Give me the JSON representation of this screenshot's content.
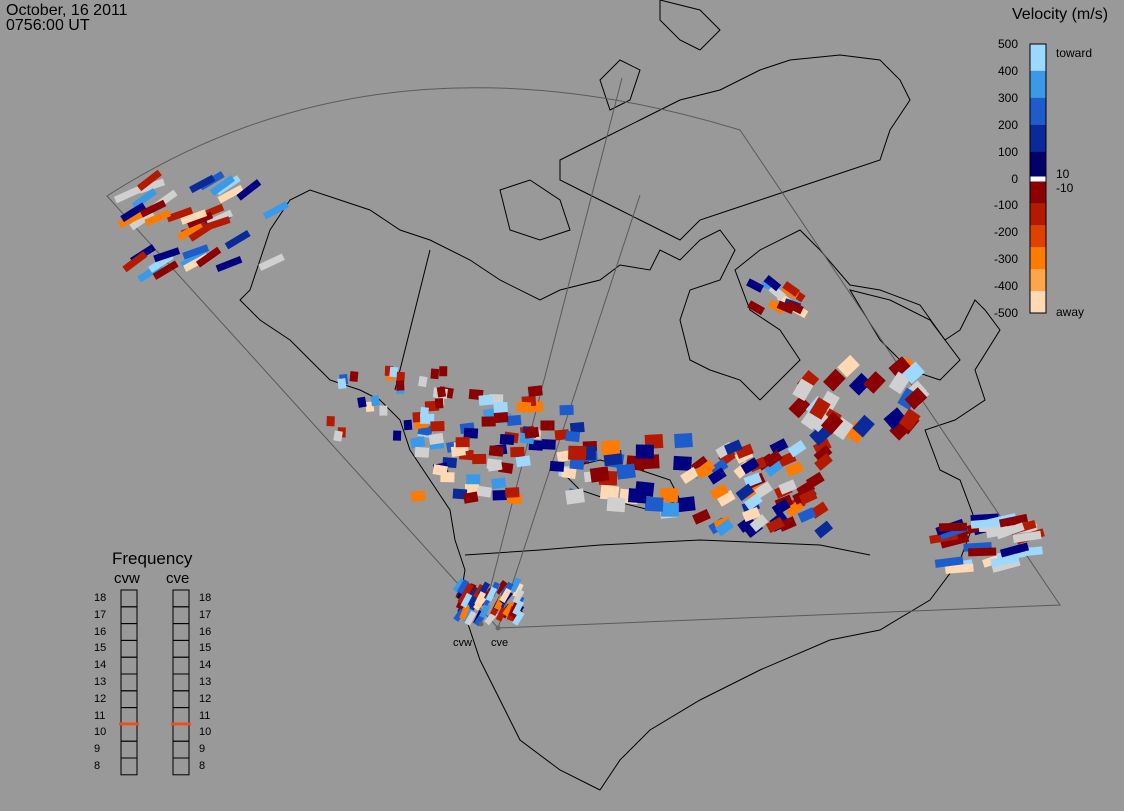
{
  "header": {
    "date": "October, 16 2011",
    "time": "0756:00 UT"
  },
  "colorbar": {
    "title": "Velocity (m/s)",
    "ticks": [
      "500",
      "400",
      "300",
      "200",
      "100",
      "0",
      "-100",
      "-200",
      "-300",
      "-400",
      "-500"
    ],
    "inner_labels": [
      "10",
      "-10"
    ],
    "toward_label": "toward",
    "away_label": "away",
    "colors": [
      "#ffd9b3",
      "#ffa64d",
      "#ff7a00",
      "#e04000",
      "#b31a00",
      "#8b0000",
      "#000066",
      "#0a2a9a",
      "#1e5ccc",
      "#3a9ae8",
      "#9fd8ff"
    ]
  },
  "frequency": {
    "title": "Frequency",
    "radars": [
      "cvw",
      "cve"
    ],
    "levels": [
      "18",
      "17",
      "16",
      "15",
      "14",
      "13",
      "12",
      "11",
      "10",
      "9",
      "8"
    ],
    "current": [
      11,
      11
    ],
    "marker_color": "#e8501c"
  },
  "sites": [
    {
      "label": "cvw"
    },
    {
      "label": "cve"
    }
  ],
  "colors": {
    "background": "#999999",
    "ground_scatter": "#d0d0d0"
  }
}
